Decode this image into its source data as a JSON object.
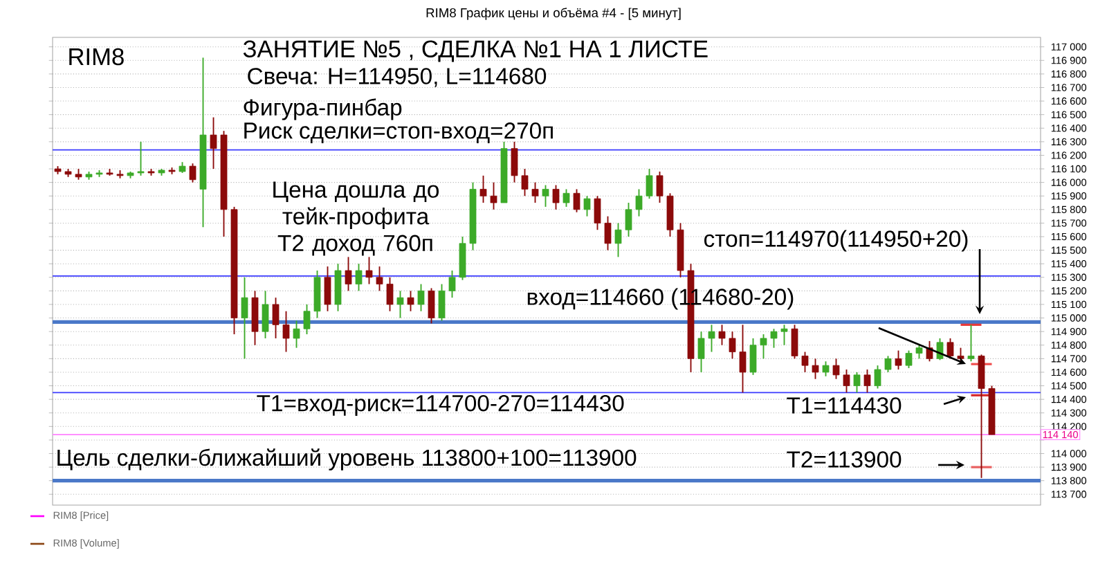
{
  "chart_data": {
    "type": "candlestick",
    "title": "RIM8 График цены и объёма #4 - [5 минут]",
    "subtitle": "RIM8",
    "categories": [
      null,
      null,
      null,
      null,
      null,
      null,
      null,
      null,
      null,
      null,
      null,
      null,
      null,
      null,
      null,
      null,
      null,
      null,
      null,
      null,
      null,
      null,
      null,
      null,
      null,
      null,
      null,
      null,
      null,
      null,
      null,
      null,
      null,
      null,
      null,
      null,
      null,
      null,
      null,
      null,
      null,
      null,
      null,
      null,
      null,
      null,
      null,
      null,
      null,
      null,
      null,
      null,
      null,
      null,
      null,
      null,
      null,
      null,
      null,
      null,
      null,
      null,
      null,
      null,
      null,
      null,
      null,
      null,
      null,
      null,
      null,
      null,
      null,
      null,
      null,
      null,
      null,
      null,
      null,
      null,
      null,
      null,
      null,
      null,
      null,
      null,
      null,
      null,
      null,
      null,
      null
    ],
    "ohlc": [
      [
        116100,
        116120,
        116060,
        116080
      ],
      [
        116080,
        116100,
        116040,
        116060
      ],
      [
        116060,
        116100,
        116020,
        116040
      ],
      [
        116040,
        116080,
        116020,
        116060
      ],
      [
        116060,
        116090,
        116040,
        116070
      ],
      [
        116070,
        116100,
        116050,
        116060
      ],
      [
        116060,
        116090,
        116030,
        116050
      ],
      [
        116050,
        116080,
        116030,
        116070
      ],
      [
        116070,
        116300,
        116050,
        116080
      ],
      [
        116080,
        116100,
        116050,
        116070
      ],
      [
        116070,
        116100,
        116050,
        116090
      ],
      [
        116090,
        116110,
        116060,
        116080
      ],
      [
        116080,
        116150,
        116070,
        116120
      ],
      [
        116120,
        116140,
        116000,
        116020
      ],
      [
        115950,
        116920,
        115670,
        116350
      ],
      [
        116350,
        116480,
        116100,
        116250
      ],
      [
        116350,
        116380,
        115600,
        115800
      ],
      [
        115800,
        115820,
        114880,
        115000
      ],
      [
        115000,
        115300,
        114700,
        115150
      ],
      [
        115150,
        115200,
        114800,
        114900
      ],
      [
        114900,
        115200,
        114850,
        115100
      ],
      [
        115100,
        115150,
        114850,
        114950
      ],
      [
        114950,
        115050,
        114750,
        114850
      ],
      [
        114850,
        114980,
        114780,
        114920
      ],
      [
        114920,
        115100,
        114880,
        115050
      ],
      [
        115050,
        115350,
        115000,
        115300
      ],
      [
        115300,
        115380,
        115050,
        115100
      ],
      [
        115100,
        115400,
        115050,
        115350
      ],
      [
        115350,
        115450,
        115200,
        115250
      ],
      [
        115250,
        115400,
        115200,
        115350
      ],
      [
        115350,
        115450,
        115250,
        115300
      ],
      [
        115300,
        115380,
        115200,
        115250
      ],
      [
        115250,
        115300,
        115050,
        115100
      ],
      [
        115100,
        115200,
        115000,
        115150
      ],
      [
        115150,
        115200,
        115050,
        115100
      ],
      [
        115100,
        115250,
        115050,
        115200
      ],
      [
        115200,
        115220,
        114960,
        115000
      ],
      [
        115000,
        115250,
        114980,
        115200
      ],
      [
        115200,
        115350,
        115150,
        115300
      ],
      [
        115300,
        115600,
        115280,
        115550
      ],
      [
        115550,
        116000,
        115500,
        115950
      ],
      [
        115950,
        116050,
        115850,
        115900
      ],
      [
        115900,
        116000,
        115800,
        115850
      ],
      [
        115850,
        116300,
        115850,
        116250
      ],
      [
        116250,
        116300,
        116000,
        116050
      ],
      [
        116050,
        116100,
        115900,
        115950
      ],
      [
        115950,
        116000,
        115850,
        115900
      ],
      [
        115900,
        115980,
        115820,
        115950
      ],
      [
        115950,
        115980,
        115800,
        115850
      ],
      [
        115850,
        115950,
        115820,
        115920
      ],
      [
        115920,
        115950,
        115780,
        115800
      ],
      [
        115800,
        115900,
        115750,
        115880
      ],
      [
        115880,
        115900,
        115650,
        115700
      ],
      [
        115700,
        115750,
        115500,
        115550
      ],
      [
        115550,
        115700,
        115450,
        115650
      ],
      [
        115650,
        115850,
        115600,
        115800
      ],
      [
        115800,
        115950,
        115750,
        115900
      ],
      [
        115900,
        116100,
        115880,
        116050
      ],
      [
        116050,
        116080,
        115850,
        115900
      ],
      [
        115900,
        115920,
        115600,
        115650
      ],
      [
        115650,
        115700,
        115300,
        115350
      ],
      [
        115350,
        115400,
        114600,
        114700
      ],
      [
        114700,
        114900,
        114600,
        114850
      ],
      [
        114850,
        114950,
        114750,
        114900
      ],
      [
        114900,
        114950,
        114800,
        114850
      ],
      [
        114850,
        114900,
        114700,
        114750
      ],
      [
        114750,
        114950,
        114450,
        114600
      ],
      [
        114600,
        114850,
        114580,
        114800
      ],
      [
        114800,
        114880,
        114700,
        114850
      ],
      [
        114850,
        114920,
        114780,
        114900
      ],
      [
        114900,
        114950,
        114800,
        114920
      ],
      [
        114920,
        114950,
        114700,
        114720
      ],
      [
        114720,
        114750,
        114600,
        114650
      ],
      [
        114650,
        114700,
        114550,
        114600
      ],
      [
        114600,
        114680,
        114570,
        114650
      ],
      [
        114650,
        114700,
        114550,
        114580
      ],
      [
        114580,
        114620,
        114450,
        114500
      ],
      [
        114500,
        114600,
        114450,
        114580
      ],
      [
        114580,
        114620,
        114450,
        114500
      ],
      [
        114500,
        114650,
        114480,
        114620
      ],
      [
        114620,
        114720,
        114600,
        114700
      ],
      [
        114700,
        114760,
        114620,
        114650
      ],
      [
        114650,
        114760,
        114630,
        114740
      ],
      [
        114740,
        114800,
        114700,
        114780
      ],
      [
        114780,
        114830,
        114680,
        114700
      ],
      [
        114700,
        114850,
        114690,
        114820
      ],
      [
        114820,
        114850,
        114700,
        114720
      ],
      [
        114720,
        114780,
        114680,
        114700
      ],
      [
        114700,
        114950,
        114680,
        114720
      ],
      [
        114720,
        114730,
        113820,
        114480
      ],
      [
        114480,
        114500,
        114140,
        114140
      ]
    ],
    "ylim": [
      113620,
      117070
    ],
    "yticks": [
      {
        "value": 113700,
        "label": "113 700"
      },
      {
        "value": 113800,
        "label": "113 800"
      },
      {
        "value": 113900,
        "label": "113 900"
      },
      {
        "value": 114000,
        "label": "114 000"
      },
      {
        "value": 114100,
        "label": null
      },
      {
        "value": 114200,
        "label": "114 200"
      },
      {
        "value": 114300,
        "label": "114 300"
      },
      {
        "value": 114400,
        "label": "114 400"
      },
      {
        "value": 114500,
        "label": "114 500"
      },
      {
        "value": 114600,
        "label": "114 600"
      },
      {
        "value": 114700,
        "label": "114 700"
      },
      {
        "value": 114800,
        "label": "114 800"
      },
      {
        "value": 114900,
        "label": "114 900"
      },
      {
        "value": 115000,
        "label": "115 000"
      },
      {
        "value": 115100,
        "label": "115 100"
      },
      {
        "value": 115200,
        "label": "115 200"
      },
      {
        "value": 115300,
        "label": "115 300"
      },
      {
        "value": 115400,
        "label": "115 400"
      },
      {
        "value": 115500,
        "label": "115 500"
      },
      {
        "value": 115600,
        "label": "115 600"
      },
      {
        "value": 115700,
        "label": "115 700"
      },
      {
        "value": 115800,
        "label": "115 800"
      },
      {
        "value": 115900,
        "label": "115 900"
      },
      {
        "value": 116000,
        "label": "116 000"
      },
      {
        "value": 116100,
        "label": "116 100"
      },
      {
        "value": 116200,
        "label": "116 200"
      },
      {
        "value": 116300,
        "label": "116 300"
      },
      {
        "value": 116400,
        "label": "116 400"
      },
      {
        "value": 116500,
        "label": "116 500"
      },
      {
        "value": 116600,
        "label": "116 600"
      },
      {
        "value": 116700,
        "label": "116 700"
      },
      {
        "value": 116800,
        "label": "116 800"
      },
      {
        "value": 116900,
        "label": "116 900"
      },
      {
        "value": 117000,
        "label": "117 000"
      }
    ],
    "tick_labels": "y",
    "grid": "y",
    "ref_lines": [
      {
        "axis": "y",
        "value": 116240,
        "color": "#3a3aff"
      },
      {
        "axis": "y",
        "value": 115310,
        "color": "#3a3aff"
      },
      {
        "axis": "y",
        "value": 114970,
        "color": "#4a78c8"
      },
      {
        "axis": "y",
        "value": 114450,
        "color": "#3a3aff"
      },
      {
        "axis": "y",
        "value": 114140,
        "color": "#ff80ff",
        "label": "114 140"
      },
      {
        "axis": "y",
        "value": 113800,
        "color": "#4a78c8"
      }
    ],
    "series": [
      {
        "type": "line",
        "color": "#e83a3a",
        "values": [
          null,
          null,
          null,
          null,
          null,
          null,
          null,
          null,
          null,
          null,
          null,
          null,
          null,
          null,
          null,
          null,
          null,
          null,
          null,
          null,
          null,
          null,
          null,
          null,
          null,
          null,
          null,
          null,
          null,
          null,
          null,
          null,
          null,
          null,
          null,
          null,
          null,
          null,
          null,
          null,
          null,
          null,
          null,
          null,
          null,
          null,
          null,
          null,
          null,
          null,
          null,
          null,
          null,
          null,
          null,
          null,
          null,
          null,
          null,
          null,
          null,
          null,
          null,
          null,
          null,
          null,
          null,
          null,
          null,
          null,
          null,
          null,
          null,
          null,
          null,
          null,
          null,
          null,
          null,
          null,
          null,
          null,
          null,
          null,
          null,
          null,
          null,
          114950,
          114950,
          114950,
          null
        ]
      },
      {
        "type": "line",
        "color": "#f05050",
        "values": [
          null,
          null,
          null,
          null,
          null,
          null,
          null,
          null,
          null,
          null,
          null,
          null,
          null,
          null,
          null,
          null,
          null,
          null,
          null,
          null,
          null,
          null,
          null,
          null,
          null,
          null,
          null,
          null,
          null,
          null,
          null,
          null,
          null,
          null,
          null,
          null,
          null,
          null,
          null,
          null,
          null,
          null,
          null,
          null,
          null,
          null,
          null,
          null,
          null,
          null,
          null,
          null,
          null,
          null,
          null,
          null,
          null,
          null,
          null,
          null,
          null,
          null,
          null,
          null,
          null,
          null,
          null,
          null,
          null,
          null,
          null,
          null,
          null,
          null,
          null,
          null,
          null,
          null,
          null,
          null,
          null,
          null,
          null,
          null,
          null,
          null,
          null,
          null,
          114660,
          114660,
          114660
        ]
      },
      {
        "type": "line",
        "color": "#d82828",
        "values": [
          null,
          null,
          null,
          null,
          null,
          null,
          null,
          null,
          null,
          null,
          null,
          null,
          null,
          null,
          null,
          null,
          null,
          null,
          null,
          null,
          null,
          null,
          null,
          null,
          null,
          null,
          null,
          null,
          null,
          null,
          null,
          null,
          null,
          null,
          null,
          null,
          null,
          null,
          null,
          null,
          null,
          null,
          null,
          null,
          null,
          null,
          null,
          null,
          null,
          null,
          null,
          null,
          null,
          null,
          null,
          null,
          null,
          null,
          null,
          null,
          null,
          null,
          null,
          null,
          null,
          null,
          null,
          null,
          null,
          null,
          null,
          null,
          null,
          null,
          null,
          null,
          null,
          null,
          null,
          null,
          null,
          null,
          null,
          null,
          null,
          null,
          null,
          null,
          114430,
          114430,
          114430
        ]
      },
      {
        "type": "line",
        "color": "#e86060",
        "values": [
          null,
          null,
          null,
          null,
          null,
          null,
          null,
          null,
          null,
          null,
          null,
          null,
          null,
          null,
          null,
          null,
          null,
          null,
          null,
          null,
          null,
          null,
          null,
          null,
          null,
          null,
          null,
          null,
          null,
          null,
          null,
          null,
          null,
          null,
          null,
          null,
          null,
          null,
          null,
          null,
          null,
          null,
          null,
          null,
          null,
          null,
          null,
          null,
          null,
          null,
          null,
          null,
          null,
          null,
          null,
          null,
          null,
          null,
          null,
          null,
          null,
          null,
          null,
          null,
          null,
          null,
          null,
          null,
          null,
          null,
          null,
          null,
          null,
          null,
          null,
          null,
          null,
          null,
          null,
          null,
          null,
          null,
          null,
          null,
          null,
          null,
          null,
          null,
          113900,
          113900,
          113900
        ]
      }
    ],
    "annotations": [
      "ЗАНЯТИЕ №5 , СДЕЛКА №1 НА 1 ЛИСТЕ",
      "Свеча: H=114950, L=114680",
      "Фигура-пинбар",
      "Риск сделки=стоп-вход=270п",
      "Цена дошла до тейк-профита T2 доход 760п",
      "стоп=114970(114950+20)",
      "вход=114660 (114680-20)",
      "T1=вход-риск=114700-270=114430",
      "T1=114430",
      "Цель сделки-ближайший уровень 113800+100=113900",
      "T2=113900",
      "RIM8 [Price]",
      "RIM8 [Volume]"
    ]
  }
}
